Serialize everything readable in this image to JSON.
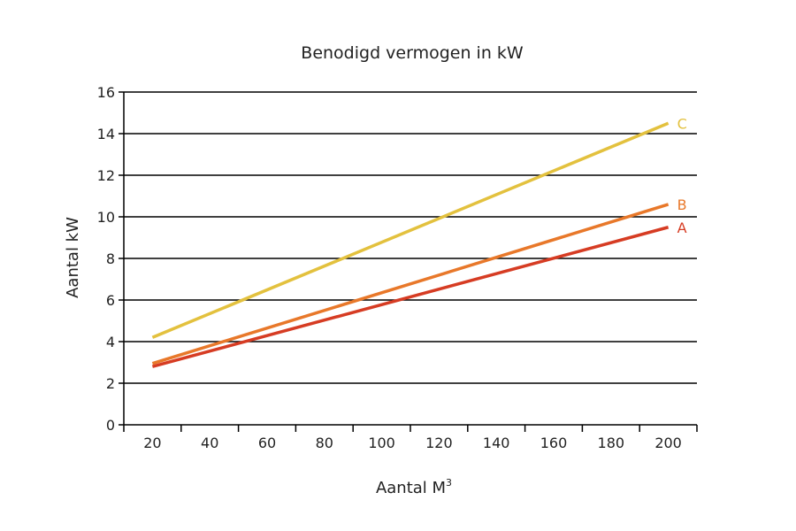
{
  "chart_data": {
    "type": "line",
    "title": "Benodigd vermogen in kW",
    "xlabel": "Aantal M",
    "xlabel_sup": "3",
    "ylabel": "Aantal kW",
    "xlim": [
      10,
      210
    ],
    "ylim": [
      0,
      16
    ],
    "x_ticks": [
      20,
      40,
      60,
      80,
      100,
      120,
      140,
      160,
      180,
      200
    ],
    "y_ticks": [
      0,
      2,
      4,
      6,
      8,
      10,
      12,
      14,
      16
    ],
    "grid": true,
    "legend": "inline-right",
    "series": [
      {
        "name": "A",
        "color": "#d63c23",
        "x": [
          20,
          200
        ],
        "y": [
          2.8,
          9.5
        ]
      },
      {
        "name": "B",
        "color": "#e8782a",
        "x": [
          20,
          200
        ],
        "y": [
          2.95,
          10.6
        ]
      },
      {
        "name": "C",
        "color": "#e3c13e",
        "x": [
          20,
          200
        ],
        "y": [
          4.2,
          14.5
        ]
      }
    ]
  }
}
